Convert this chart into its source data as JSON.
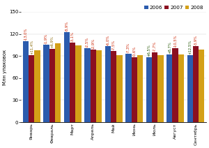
{
  "months": [
    "Январь",
    "Февраль",
    "Март",
    "Апрель",
    "Май",
    "Июнь",
    "Июль",
    "Август",
    "Сентябрь"
  ],
  "values_2006": [
    110,
    105,
    122,
    101,
    103,
    93,
    88,
    92,
    91
  ],
  "values_2007": [
    91,
    100,
    108,
    99,
    97,
    88,
    95,
    101,
    103
  ],
  "values_2008": [
    98,
    107,
    104,
    98,
    91,
    91,
    91,
    92,
    99
  ],
  "labels_above_2006": [
    "-13,0%",
    "-1,9%",
    "-8,9%",
    "-2,5%",
    "-6,0%",
    "-7,3%",
    "+6,5%",
    "+8,7%",
    "+12,5%"
  ],
  "labels_above_2007": [
    "+11,4%",
    "+6,9%",
    "-3,1%",
    "-2,9%",
    "-7,5%",
    "-0,6%",
    "-7,7%",
    "-10,5%",
    "-3,9%"
  ],
  "ylabel": "Млн упаковок",
  "ylim": [
    0,
    150
  ],
  "yticks": [
    0,
    30,
    60,
    90,
    120,
    150
  ],
  "color_2006": "#2B5BAD",
  "color_2007": "#8B1020",
  "color_2008": "#D4A017",
  "bar_width": 0.28,
  "legend_labels": [
    "2006",
    "2007",
    "2008"
  ]
}
